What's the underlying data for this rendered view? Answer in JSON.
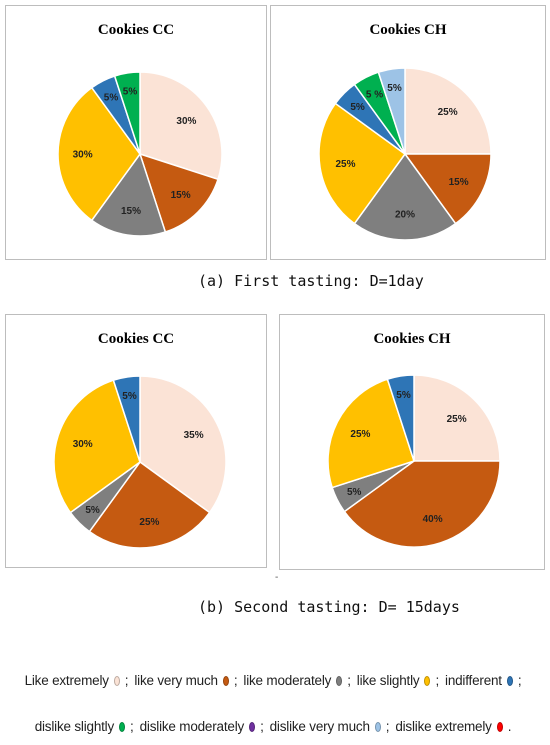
{
  "captions": {
    "first": "(a) First tasting: D=1day",
    "second": "(b) Second tasting: D= 15days"
  },
  "colors": {
    "like_extremely": "#FBE3D6",
    "like_very_much": "#C55A11",
    "like_moderately": "#7F7F7F",
    "like_slightly": "#FFC000",
    "indifferent": "#2E75B6",
    "dislike_slightly": "#00B050",
    "dislike_moderately": "#7030A0",
    "dislike_very_much": "#9DC3E6",
    "dislike_extremely": "#FF0000"
  },
  "legend": {
    "line1": [
      {
        "label": "Like extremely",
        "color": "#FBE3D6",
        "sep": ";"
      },
      {
        "label": "like very much",
        "color": "#C55A11",
        "sep": ";"
      },
      {
        "label": "like moderately",
        "color": "#7F7F7F",
        "sep": ";"
      },
      {
        "label": "like slightly",
        "color": "#FFC000",
        "sep": ";"
      },
      {
        "label": "indifferent",
        "color": "#2E75B6",
        "sep": ";"
      }
    ],
    "line2": [
      {
        "label": "dislike slightly",
        "color": "#00B050",
        "sep": ";"
      },
      {
        "label": "dislike moderately",
        "color": "#7030A0",
        "sep": ";"
      },
      {
        "label": "dislike very much",
        "color": "#9DC3E6",
        "sep": ";"
      },
      {
        "label": "dislike extremely",
        "color": "#FF0000",
        "sep": "."
      }
    ]
  },
  "chart_data": [
    {
      "type": "pie",
      "title": "Cookies CC",
      "group": "(a) First tasting: D=1day",
      "slices": [
        {
          "label": "like extremely",
          "value": 30,
          "color": "#FBE3D6",
          "text": "30%"
        },
        {
          "label": "like very much",
          "value": 15,
          "color": "#C55A11",
          "text": "15%"
        },
        {
          "label": "like moderately",
          "value": 15,
          "color": "#7F7F7F",
          "text": "15%"
        },
        {
          "label": "like slightly",
          "value": 30,
          "color": "#FFC000",
          "text": "30%"
        },
        {
          "label": "indifferent",
          "value": 5,
          "color": "#2E75B6",
          "text": "5%"
        },
        {
          "label": "dislike slightly",
          "value": 5,
          "color": "#00B050",
          "text": "5%"
        }
      ]
    },
    {
      "type": "pie",
      "title": "Cookies CH",
      "group": "(a) First tasting: D=1day",
      "slices": [
        {
          "label": "like extremely",
          "value": 25,
          "color": "#FBE3D6",
          "text": "25%"
        },
        {
          "label": "like very much",
          "value": 15,
          "color": "#C55A11",
          "text": "15%"
        },
        {
          "label": "like moderately",
          "value": 20,
          "color": "#7F7F7F",
          "text": "20%"
        },
        {
          "label": "like slightly",
          "value": 25,
          "color": "#FFC000",
          "text": "25%"
        },
        {
          "label": "indifferent",
          "value": 5,
          "color": "#2E75B6",
          "text": "5%"
        },
        {
          "label": "dislike slightly",
          "value": 5,
          "color": "#00B050",
          "text": "5 %"
        },
        {
          "label": "dislike very much",
          "value": 5,
          "color": "#9DC3E6",
          "text": "5%"
        }
      ]
    },
    {
      "type": "pie",
      "title": "Cookies CC",
      "group": "(b) Second tasting: D= 15days",
      "slices": [
        {
          "label": "like extremely",
          "value": 35,
          "color": "#FBE3D6",
          "text": "35%"
        },
        {
          "label": "like very much",
          "value": 25,
          "color": "#C55A11",
          "text": "25%"
        },
        {
          "label": "like moderately",
          "value": 5,
          "color": "#7F7F7F",
          "text": "5%"
        },
        {
          "label": "like slightly",
          "value": 30,
          "color": "#FFC000",
          "text": "30%"
        },
        {
          "label": "indifferent",
          "value": 5,
          "color": "#2E75B6",
          "text": "5%"
        }
      ]
    },
    {
      "type": "pie",
      "title": "Cookies CH",
      "group": "(b) Second tasting: D= 15days",
      "slices": [
        {
          "label": "like extremely",
          "value": 25,
          "color": "#FBE3D6",
          "text": "25%"
        },
        {
          "label": "like very much",
          "value": 40,
          "color": "#C55A11",
          "text": "40%"
        },
        {
          "label": "like moderately",
          "value": 5,
          "color": "#7F7F7F",
          "text": "5%"
        },
        {
          "label": "like slightly",
          "value": 25,
          "color": "#FFC000",
          "text": "25%"
        },
        {
          "label": "indifferent",
          "value": 5,
          "color": "#2E75B6",
          "text": "5%"
        }
      ]
    }
  ]
}
